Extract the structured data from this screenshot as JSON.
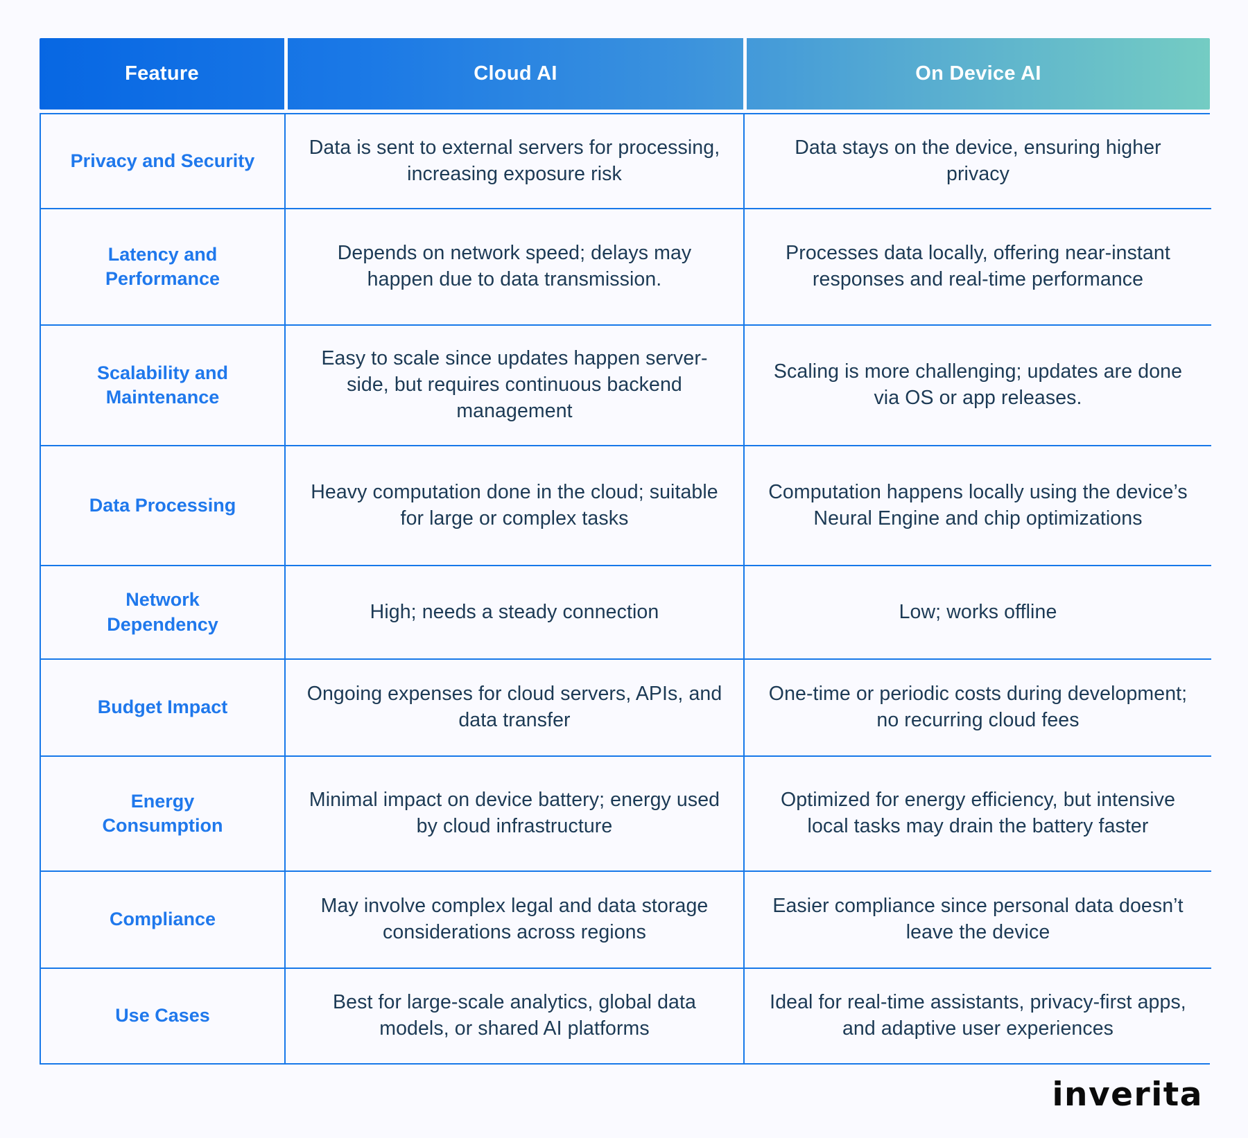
{
  "table": {
    "columns": [
      {
        "label": "Feature"
      },
      {
        "label": "Cloud AI"
      },
      {
        "label": "On Device AI"
      }
    ],
    "rows": [
      {
        "feature": "Privacy and Security",
        "cloud": "Data is sent to external servers for processing, increasing exposure risk",
        "device": "Data stays on the device, ensuring higher privacy"
      },
      {
        "feature": "Latency and Performance",
        "cloud": "Depends on network speed; delays may happen due to data transmission.",
        "device": "Processes data locally, offering near-instant responses and real-time performance"
      },
      {
        "feature": "Scalability and Maintenance",
        "cloud": "Easy to scale since updates happen server-side, but requires continuous backend management",
        "device": "Scaling is more challenging; updates are done via OS or app releases."
      },
      {
        "feature": "Data Processing",
        "cloud": "Heavy computation done in the cloud; suitable for large or complex tasks",
        "device": "Computation happens locally using the device’s Neural Engine and chip optimizations"
      },
      {
        "feature": "Network Dependency",
        "cloud": "High; needs a steady connection",
        "device": "Low; works offline"
      },
      {
        "feature": "Budget Impact",
        "cloud": "Ongoing expenses for cloud servers, APIs, and data transfer",
        "device": "One-time or periodic costs during development; no recurring cloud fees"
      },
      {
        "feature": "Energy Consumption",
        "cloud": "Minimal impact on device battery; energy used by cloud infrastructure",
        "device": "Optimized for energy efficiency, but intensive local tasks may drain the battery faster"
      },
      {
        "feature": "Compliance",
        "cloud": "May involve complex legal and data storage considerations across regions",
        "device": "Easier compliance since personal data doesn’t leave the device"
      },
      {
        "feature": "Use Cases",
        "cloud": "Best for large-scale analytics, global data models, or shared AI platforms",
        "device": "Ideal for real-time assistants, privacy-first apps, and adaptive user experiences"
      }
    ]
  },
  "logo": {
    "text": "inverita"
  },
  "colors": {
    "header_gradient_start": "#0767e3",
    "header_gradient_end": "#74ccc3",
    "grid_border": "#1778e9",
    "feature_label": "#1f78ec",
    "body_text": "#1c3a55",
    "page_background": "#fafaff",
    "header_text": "#ffffff",
    "logo_text": "#0a0a0a"
  }
}
